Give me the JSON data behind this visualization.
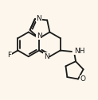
{
  "bg_color": "#fdf6ec",
  "bond_color": "#1a1a1a",
  "font_color": "#1a1a1a",
  "bond_width": 1.3,
  "font_size": 6.5,
  "figsize": [
    1.23,
    1.26
  ],
  "dpi": 100,
  "xlim": [
    -0.85,
    0.85
  ],
  "ylim": [
    -0.82,
    0.82
  ]
}
